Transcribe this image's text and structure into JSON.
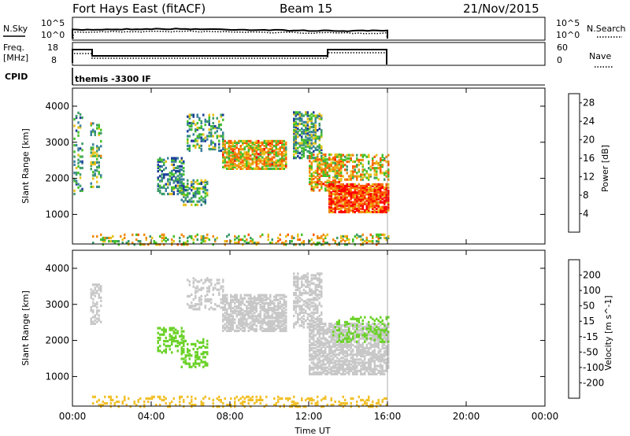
{
  "header": {
    "radar": "Fort Hays East (fitACF)",
    "beam": "Beam 15",
    "date": "21/Nov/2015"
  },
  "panels": {
    "nsky": {
      "left_label": "N.Sky",
      "right_label": "N.Search",
      "left_ticks": [
        "10^5",
        "10^0"
      ],
      "right_ticks": [
        "10^5",
        "10^0"
      ]
    },
    "freq": {
      "left_label_1": "Freq.",
      "left_label_2": "[MHz]",
      "right_label": "Nave",
      "left_ticks": [
        "18",
        "8"
      ],
      "right_ticks": [
        "60",
        "0"
      ]
    },
    "cpid": {
      "label": "CPID",
      "text": "themis -3300 IF"
    }
  },
  "colors": {
    "power": [
      "#0000ff",
      "#1e3f9a",
      "#3a7f9c",
      "#3d9b6a",
      "#46c12a",
      "#e6c21a",
      "#f08c10",
      "#ff5a00",
      "#ff0000"
    ],
    "velocity": [
      "#ff0000",
      "#ff4400",
      "#ff8a00",
      "#f2c12c",
      "#c8c8c8",
      "#6cd22a",
      "#2e9a5a",
      "#2a5ab0",
      "#1a2aaa"
    ]
  },
  "chart_data": [
    {
      "type": "heatmap",
      "name": "power",
      "ylabel": "Slant Range [km]",
      "xlabel": "Time UT",
      "x_ticks": [
        "00:00",
        "04:00",
        "08:00",
        "12:00",
        "16:00",
        "20:00",
        "00:00"
      ],
      "x_range_hours": [
        0,
        24
      ],
      "y_ticks": [
        1000,
        2000,
        3000,
        4000
      ],
      "ylim": [
        180,
        4500
      ],
      "colorbar_label": "Power [dB]",
      "colorbar_ticks": [
        4,
        8,
        12,
        16,
        20,
        24,
        28
      ],
      "colorbar_range": [
        0,
        30
      ],
      "data_end_hour": 16,
      "regions": [
        {
          "t0": 0.05,
          "t1": 0.5,
          "r0": 1600,
          "r1": 3900,
          "v": 12,
          "d": 0.25
        },
        {
          "t0": 0.9,
          "t1": 1.5,
          "r0": 1800,
          "r1": 3600,
          "v": 14,
          "d": 0.35
        },
        {
          "t0": 4.3,
          "t1": 5.6,
          "r0": 1600,
          "r1": 2600,
          "v": 11,
          "d": 0.45
        },
        {
          "t0": 5.5,
          "t1": 6.8,
          "r0": 1300,
          "r1": 2000,
          "v": 12,
          "d": 0.4
        },
        {
          "t0": 5.8,
          "t1": 7.6,
          "r0": 2800,
          "r1": 3800,
          "v": 12,
          "d": 0.35
        },
        {
          "t0": 7.6,
          "t1": 10.8,
          "r0": 2300,
          "r1": 3100,
          "v": 20,
          "d": 0.7
        },
        {
          "t0": 11.2,
          "t1": 12.6,
          "r0": 2600,
          "r1": 3900,
          "v": 12,
          "d": 0.55
        },
        {
          "t0": 12.0,
          "t1": 13.6,
          "r0": 1700,
          "r1": 2700,
          "v": 20,
          "d": 0.6
        },
        {
          "t0": 13.0,
          "t1": 16.0,
          "r0": 1100,
          "r1": 1900,
          "v": 26,
          "d": 0.8
        },
        {
          "t0": 13.3,
          "t1": 16.0,
          "r0": 2000,
          "r1": 2700,
          "v": 19,
          "d": 0.45
        },
        {
          "t0": 1.0,
          "t1": 16.0,
          "r0": 200,
          "r1": 500,
          "v": 17,
          "d": 0.25
        }
      ]
    },
    {
      "type": "heatmap",
      "name": "velocity",
      "ylabel": "Slant Range [km]",
      "xlabel": "Time UT",
      "x_ticks": [
        "00:00",
        "04:00",
        "08:00",
        "12:00",
        "16:00",
        "20:00",
        "00:00"
      ],
      "x_range_hours": [
        0,
        24
      ],
      "y_ticks": [
        1000,
        2000,
        3000,
        4000
      ],
      "ylim": [
        180,
        4500
      ],
      "colorbar_label": "Velocity [m s^-1]",
      "colorbar_ticks": [
        200,
        100,
        50,
        15,
        -15,
        -50,
        -100,
        -200
      ],
      "data_end_hour": 16,
      "regions": [
        {
          "t0": 0.9,
          "t1": 1.5,
          "r0": 2500,
          "r1": 3600,
          "v": 0,
          "d": 0.45
        },
        {
          "t0": 4.3,
          "t1": 5.6,
          "r0": 1700,
          "r1": 2400,
          "v": 30,
          "d": 0.45
        },
        {
          "t0": 5.5,
          "t1": 6.8,
          "r0": 1300,
          "r1": 2100,
          "v": 30,
          "d": 0.4
        },
        {
          "t0": 5.8,
          "t1": 7.6,
          "r0": 2900,
          "r1": 3800,
          "v": 0,
          "d": 0.3
        },
        {
          "t0": 7.6,
          "t1": 10.8,
          "r0": 2300,
          "r1": 3300,
          "v": 0,
          "d": 0.7
        },
        {
          "t0": 11.2,
          "t1": 12.6,
          "r0": 2400,
          "r1": 3900,
          "v": 0,
          "d": 0.5
        },
        {
          "t0": 12.0,
          "t1": 16.0,
          "r0": 1100,
          "r1": 2500,
          "v": 0,
          "d": 0.7
        },
        {
          "t0": 13.2,
          "t1": 16.0,
          "r0": 2000,
          "r1": 2700,
          "v": 30,
          "d": 0.3
        },
        {
          "t0": 1.0,
          "t1": 16.0,
          "r0": 200,
          "r1": 500,
          "v": -30,
          "d": 0.25
        }
      ]
    }
  ]
}
